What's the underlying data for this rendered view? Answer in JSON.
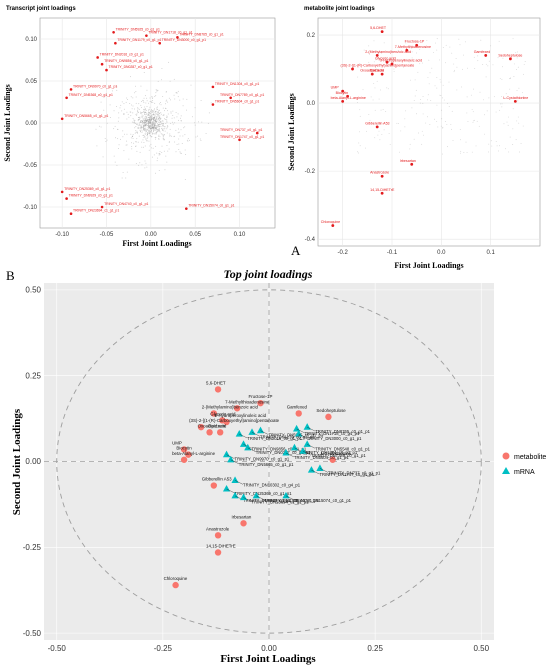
{
  "panel_labels": {
    "a": "A",
    "b": "B"
  },
  "chart_data": [
    {
      "type": "scatter",
      "title": "Transcript joint loadings",
      "xlabel": "First Joint Loadings",
      "ylabel": "Second Joint Loadings",
      "xlim": [
        -0.125,
        0.14
      ],
      "ylim": [
        -0.125,
        0.125
      ],
      "xticks": [
        -0.1,
        -0.05,
        0.0,
        0.05,
        0.1
      ],
      "xtick_labels": [
        "-0.10",
        "-0.05",
        "0.00",
        "0.05",
        "0.10"
      ],
      "yticks": [
        -0.1,
        -0.05,
        0.0,
        0.05,
        0.1
      ],
      "ytick_labels": [
        "-0.10",
        "-0.05",
        "0.00",
        "0.05",
        "0.10"
      ],
      "grid": true,
      "background_cloud": "dense grey points centered near the origin",
      "colors": {
        "highlight": "#e31a1c",
        "background": "#9e9e9e"
      },
      "points": [
        {
          "x": -0.042,
          "y": 0.108,
          "label": "TRINITY_DN5925_c0_g1_p1"
        },
        {
          "x": -0.005,
          "y": 0.104,
          "label": "TRINITY_DN1718_c0_g1_p1"
        },
        {
          "x": 0.03,
          "y": 0.102,
          "label": "TRINITY_DN8765_c0_g1_p1"
        },
        {
          "x": -0.04,
          "y": 0.095,
          "label": "TRINITY_DN1179_c0_g1_p1"
        },
        {
          "x": 0.01,
          "y": 0.095,
          "label": "TRINITY_DN3000_c0_g1_p1"
        },
        {
          "x": -0.06,
          "y": 0.078,
          "label": "TRINITY_DN2016_c0_g1_p1"
        },
        {
          "x": -0.055,
          "y": 0.07,
          "label": "TRINITY_DN9856_c0_g1_p1"
        },
        {
          "x": -0.05,
          "y": 0.063,
          "label": "TRINITY_DN0287_c0_g1_p1"
        },
        {
          "x": -0.09,
          "y": 0.04,
          "label": "TRINITY_DN9970_c0_g1_p1"
        },
        {
          "x": 0.07,
          "y": 0.043,
          "label": "TRINITY_DN1304_c0_g1_p1"
        },
        {
          "x": -0.095,
          "y": 0.03,
          "label": "TRINITY_DN5368_c0_g1_p1"
        },
        {
          "x": 0.09,
          "y": 0.03,
          "label": "TRINITY_DN7789_c0_g1_p1"
        },
        {
          "x": 0.07,
          "y": 0.022,
          "label": "TRINITY_DN5604_c0_g1_p1"
        },
        {
          "x": -0.1,
          "y": 0.005,
          "label": "TRINITY_DN5665_c0_g1_p1"
        },
        {
          "x": 0.12,
          "y": -0.012,
          "label": "TRINITY_DN737_c0_g1_p1"
        },
        {
          "x": 0.1,
          "y": -0.02,
          "label": "TRINITY_DN1747_c0_g1_p1"
        },
        {
          "x": -0.1,
          "y": -0.082,
          "label": "TRINITY_DN25369_c0_g1_p1"
        },
        {
          "x": -0.095,
          "y": -0.09,
          "label": "TRINITY_DN9929_c0_g1_p1"
        },
        {
          "x": -0.055,
          "y": -0.1,
          "label": "TRINITY_DN4740_c0_g1_p1"
        },
        {
          "x": -0.09,
          "y": -0.108,
          "label": "TRINITY_DN23694_c1_g1_p1"
        },
        {
          "x": 0.04,
          "y": -0.102,
          "label": "TRINITY_DN15074_c0_g1_p1"
        }
      ]
    },
    {
      "type": "scatter",
      "title": "metabolite joint loadings",
      "xlabel": "First Joint Loadings",
      "ylabel": "Second Joint Loadings",
      "xlim": [
        -0.25,
        0.2
      ],
      "ylim": [
        -0.42,
        0.25
      ],
      "xticks": [
        -0.2,
        -0.1,
        0.0,
        0.1
      ],
      "xtick_labels": [
        "-0.2",
        "-0.1",
        "0.0",
        "0.1"
      ],
      "yticks": [
        0.2,
        0.0,
        -0.2,
        -0.4
      ],
      "ytick_labels": [
        "0.2",
        "0.0",
        "-0.2",
        "-0.4"
      ],
      "grid": true,
      "colors": {
        "highlight": "#e31a1c",
        "background": "#9e9e9e"
      },
      "points": [
        {
          "x": -0.12,
          "y": 0.21,
          "label": "5,6-DHET"
        },
        {
          "x": -0.05,
          "y": 0.17,
          "label": "Fructose-1P"
        },
        {
          "x": -0.07,
          "y": 0.155,
          "label": "7-Methylthioadenosine"
        },
        {
          "x": -0.13,
          "y": 0.14,
          "label": "2-(Methylamino)benzoic acid"
        },
        {
          "x": 0.09,
          "y": 0.14,
          "label": "Gamfexed"
        },
        {
          "x": 0.14,
          "y": 0.13,
          "label": "Sedoheptulose"
        },
        {
          "x": -0.11,
          "y": 0.12,
          "label": "Glyceric acid"
        },
        {
          "x": -0.1,
          "y": 0.115,
          "label": "9-Hydroperoxylinoleic acid"
        },
        {
          "x": -0.18,
          "y": 0.1,
          "label": "(3S)-2-[(1-(R)-Carboxyethyl)amino]pentanoate"
        },
        {
          "x": -0.14,
          "y": 0.085,
          "label": "Oxoadipic acid"
        },
        {
          "x": -0.12,
          "y": 0.085,
          "label": "Daidzein"
        },
        {
          "x": -0.2,
          "y": 0.035,
          "label": "UMP"
        },
        {
          "x": -0.19,
          "y": 0.02,
          "label": "Biocytin"
        },
        {
          "x": -0.2,
          "y": 0.005,
          "label": "beta-Alanyl-L-arginine"
        },
        {
          "x": 0.15,
          "y": 0.005,
          "label": "L-Cystathionine"
        },
        {
          "x": -0.13,
          "y": -0.07,
          "label": "Gibberellin A53"
        },
        {
          "x": -0.06,
          "y": -0.18,
          "label": "Irbesartan"
        },
        {
          "x": -0.12,
          "y": -0.215,
          "label": "Anastrozole"
        },
        {
          "x": -0.12,
          "y": -0.265,
          "label": "14,15-DiHETrE"
        },
        {
          "x": -0.22,
          "y": -0.36,
          "label": "Chloroquine"
        }
      ]
    },
    {
      "type": "scatter",
      "title": "Top joint loadings",
      "xlabel": "First Joint Loadings",
      "ylabel": "Second Joint Loadings",
      "xlim": [
        -0.53,
        0.53
      ],
      "ylim": [
        -0.52,
        0.52
      ],
      "xticks": [
        -0.5,
        -0.25,
        0.0,
        0.25,
        0.5
      ],
      "xtick_labels": [
        "-0.50",
        "-0.25",
        "0.00",
        "0.25",
        "0.50"
      ],
      "yticks": [
        -0.5,
        -0.25,
        0.0,
        0.25,
        0.5
      ],
      "ytick_labels": [
        "-0.50",
        "-0.25",
        "0.00",
        "0.25",
        "0.50"
      ],
      "grid": true,
      "reference_circle_radius": 0.5,
      "legend": {
        "placement": "right",
        "entries": [
          "metabolite",
          "mRNA"
        ]
      },
      "colors": {
        "metabolite": "#f8766d",
        "mRNA": "#00bfc4",
        "panel_bg": "#ebebeb",
        "grid": "#ffffff"
      },
      "series": [
        {
          "name": "metabolite",
          "points": [
            {
              "x": -0.12,
              "y": 0.21,
              "label": "5,6-DHET"
            },
            {
              "x": -0.02,
              "y": 0.17,
              "label": "Fructose-1P"
            },
            {
              "x": -0.075,
              "y": 0.155,
              "label": "7-Methylthioadenosine"
            },
            {
              "x": -0.13,
              "y": 0.14,
              "label": "2-(Methylamino)benzoic acid"
            },
            {
              "x": 0.07,
              "y": 0.14,
              "label": "Gamfexed"
            },
            {
              "x": 0.14,
              "y": 0.13,
              "label": "Sedoheptulose"
            },
            {
              "x": -0.11,
              "y": 0.12,
              "label": "Glyceric acid"
            },
            {
              "x": -0.1,
              "y": 0.115,
              "label": "9-Hydroperoxylinoleic acid"
            },
            {
              "x": -0.16,
              "y": 0.1,
              "label": "(3S)-2-[(1-(R)-Carboxyethyl)amino]pentanoate"
            },
            {
              "x": -0.14,
              "y": 0.085,
              "label": "Oxoadipic acid"
            },
            {
              "x": -0.115,
              "y": 0.085,
              "label": "Daidzein"
            },
            {
              "x": -0.2,
              "y": 0.035,
              "label": "UMP"
            },
            {
              "x": -0.19,
              "y": 0.02,
              "label": "Biocytin"
            },
            {
              "x": -0.2,
              "y": 0.005,
              "label": "beta-Alanyl-L-arginine"
            },
            {
              "x": 0.15,
              "y": 0.005,
              "label": "L-Cystathionine"
            },
            {
              "x": -0.13,
              "y": -0.07,
              "label": "Gibberellin A53"
            },
            {
              "x": -0.06,
              "y": -0.18,
              "label": "Irbesartan"
            },
            {
              "x": -0.12,
              "y": -0.215,
              "label": "Anastrozole"
            },
            {
              "x": -0.12,
              "y": -0.265,
              "label": "14,15-DiHETrE"
            },
            {
              "x": -0.22,
              "y": -0.36,
              "label": "Chloroquine"
            }
          ]
        },
        {
          "name": "mRNA",
          "points": [
            {
              "x": -0.02,
              "y": 0.09,
              "label": "TRINITY_DN5925_c0_g1_p1"
            },
            {
              "x": 0.065,
              "y": 0.095,
              "label": "TRINITY_DN1718_c0_g1_p1"
            },
            {
              "x": 0.07,
              "y": 0.08,
              "label": "TRINITY_DN3000_c0_g1_p1"
            },
            {
              "x": -0.04,
              "y": 0.085,
              "label": "TRINITY_DN1179_c0_g1_p1"
            },
            {
              "x": 0.09,
              "y": 0.1,
              "label": "TRINITY_DN8765_c0_g1_p1"
            },
            {
              "x": -0.07,
              "y": 0.08,
              "label": "TRINITY_DN2016_c0_g1_p1"
            },
            {
              "x": -0.06,
              "y": 0.05,
              "label": "TRINITY_DN9856_c0_g1_p1"
            },
            {
              "x": -0.05,
              "y": 0.04,
              "label": "TRINITY_DN0287_c0_g1_p1"
            },
            {
              "x": -0.1,
              "y": 0.02,
              "label": "TRINITY_DN9970_c0_g1_p1"
            },
            {
              "x": 0.06,
              "y": 0.04,
              "label": "TRINITY_DN1304_c0_g1_p1"
            },
            {
              "x": 0.09,
              "y": 0.05,
              "label": "TRINITY_DN5548_c0_g1_p1"
            },
            {
              "x": 0.08,
              "y": 0.03,
              "label": "TRINITY_DN7789_c0_g1_p1"
            },
            {
              "x": 0.04,
              "y": 0.025,
              "label": "TRINITY_DN5604_c0_g1_p1"
            },
            {
              "x": -0.09,
              "y": 0.005,
              "label": "TRINITY_DN5665_c0_g1_p1"
            },
            {
              "x": 0.12,
              "y": -0.02,
              "label": "TRINITY_DN737_c0_g1_p1"
            },
            {
              "x": 0.1,
              "y": -0.025,
              "label": "TRINITY_DN1747_c0_g1_p1"
            },
            {
              "x": -0.08,
              "y": -0.055,
              "label": "TRINITY_DN10302_c0_g4_p1"
            },
            {
              "x": -0.1,
              "y": -0.08,
              "label": "TRINITY_DN25369_c0_g1_p1"
            },
            {
              "x": -0.08,
              "y": -0.1,
              "label": "TRINITY_DN9929_c0_g1_p1"
            },
            {
              "x": -0.03,
              "y": -0.1,
              "label": "TRINITY_DN4740_c0_g1_p1"
            },
            {
              "x": -0.06,
              "y": -0.105,
              "label": "TRINITY_DN23694_c1_g1_p1"
            },
            {
              "x": 0.04,
              "y": -0.1,
              "label": "TRINITY_DN15074_c0_g1_p1"
            }
          ]
        }
      ]
    }
  ]
}
